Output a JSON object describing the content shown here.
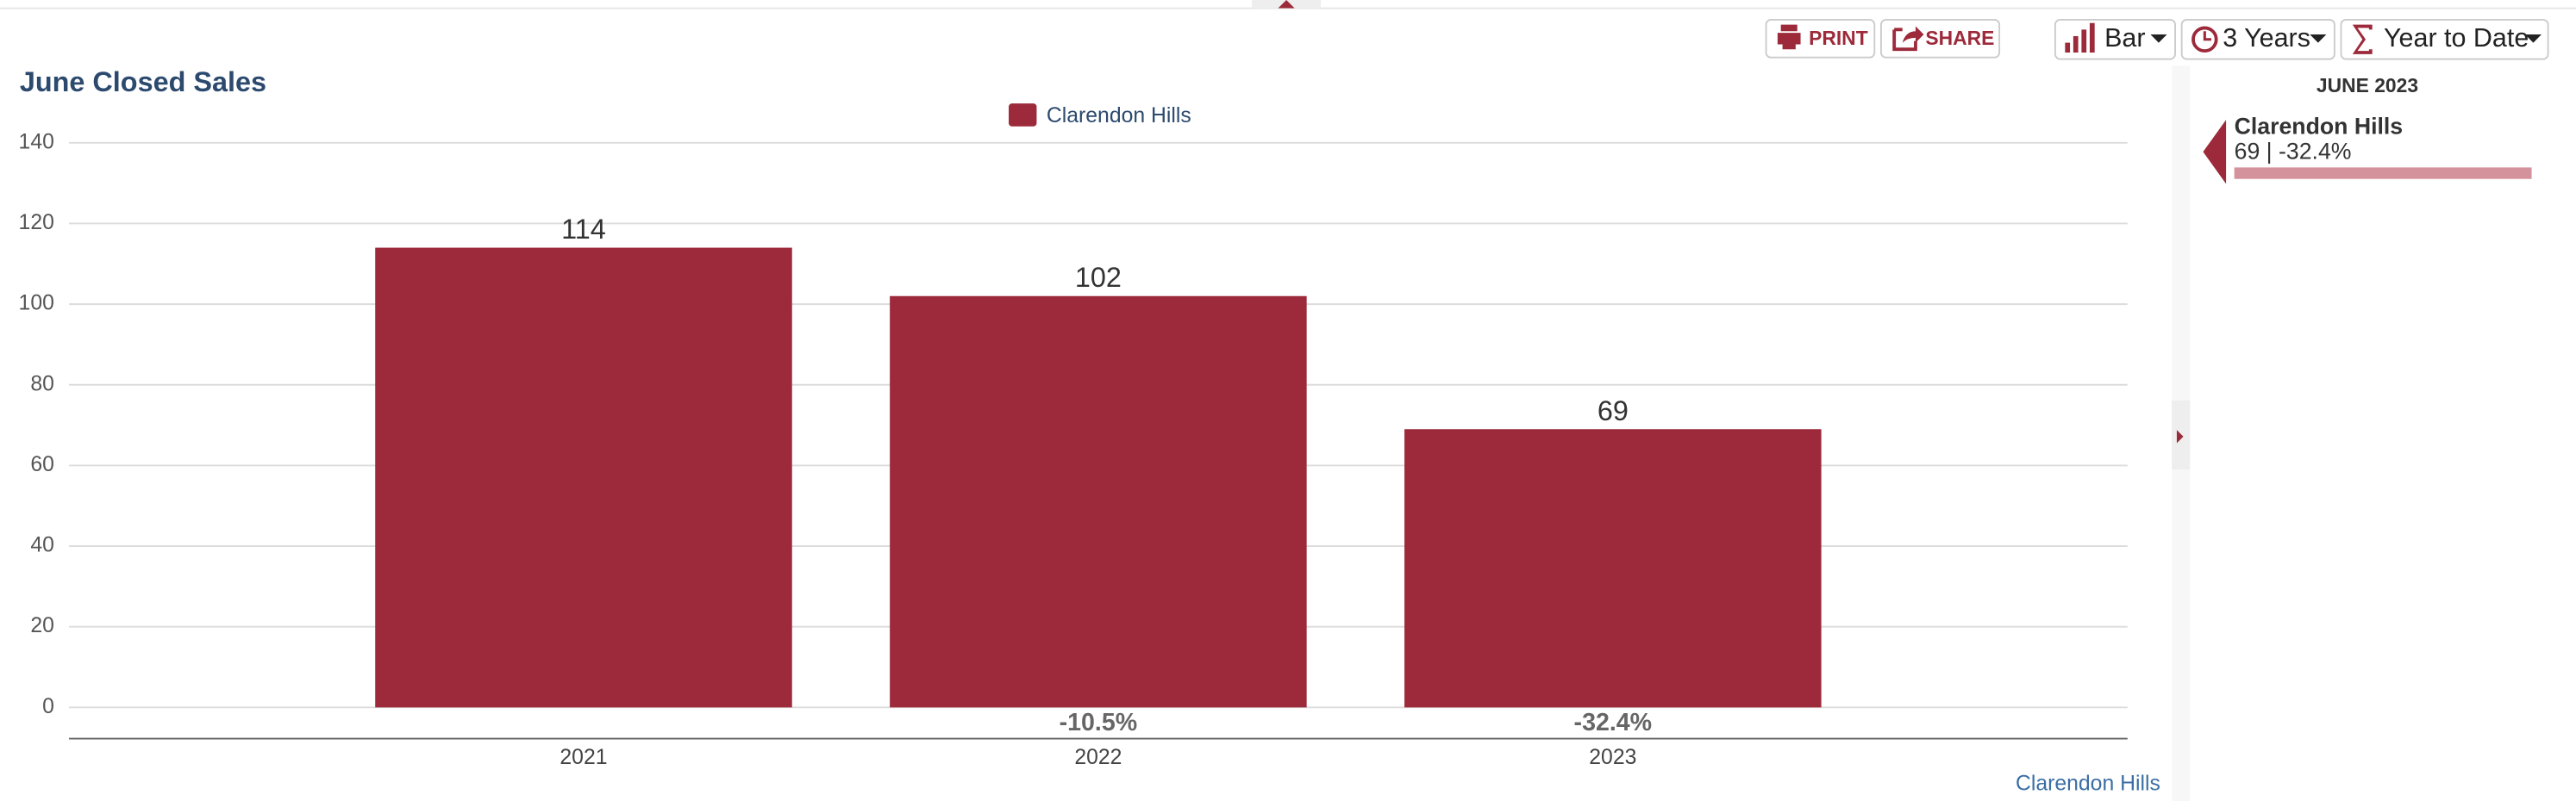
{
  "toolbar": {
    "print": "PRINT",
    "share": "SHARE",
    "chart_type": "Bar",
    "period": "3 Years",
    "range": "Year to Date"
  },
  "chart_data": {
    "type": "bar",
    "title": "June Closed Sales",
    "categories": [
      "2021",
      "2022",
      "2023"
    ],
    "series": [
      {
        "name": "Clarendon Hills",
        "color": "#9c2a3a",
        "values": [
          114,
          102,
          69
        ]
      }
    ],
    "change_labels": [
      null,
      "-10.5%",
      "-32.4%"
    ],
    "ylim": [
      0,
      140
    ],
    "yticks": [
      0,
      20,
      40,
      60,
      80,
      100,
      120,
      140
    ],
    "grid": true
  },
  "footer_link": "Clarendon Hills",
  "side_panel": {
    "heading": "JUNE 2023",
    "name": "Clarendon Hills",
    "summary": "69 | -32.4%"
  }
}
